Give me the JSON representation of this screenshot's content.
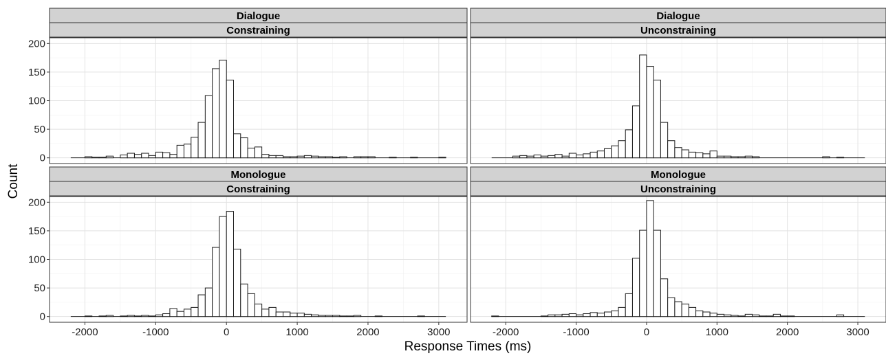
{
  "chart_data": {
    "type": "bar",
    "xlabel": "Response Times (ms)",
    "ylabel": "Count",
    "xlim": [
      -2500,
      3400
    ],
    "ylim": [
      -10,
      210
    ],
    "x_ticks": [
      -2000,
      -1000,
      0,
      1000,
      2000,
      3000
    ],
    "y_ticks": [
      0,
      50,
      100,
      150,
      200
    ],
    "grid": true,
    "legend": "none",
    "bin_width": 100,
    "bin_starts": [
      -2200,
      -2100,
      -2000,
      -1900,
      -1800,
      -1700,
      -1600,
      -1500,
      -1400,
      -1300,
      -1200,
      -1100,
      -1000,
      -900,
      -800,
      -700,
      -600,
      -500,
      -400,
      -300,
      -200,
      -100,
      0,
      100,
      200,
      300,
      400,
      500,
      600,
      700,
      800,
      900,
      1000,
      1100,
      1200,
      1300,
      1400,
      1500,
      1600,
      1700,
      1800,
      1900,
      2000,
      2100,
      2200,
      2300,
      2400,
      2500,
      2600,
      2700,
      2800,
      2900,
      3000
    ],
    "panels": [
      {
        "strip": [
          "Dialogue",
          "Constraining"
        ],
        "values": [
          0,
          0,
          2,
          1,
          1,
          3,
          0,
          5,
          8,
          6,
          8,
          4,
          10,
          9,
          6,
          22,
          24,
          36,
          62,
          109,
          156,
          171,
          136,
          42,
          35,
          17,
          19,
          6,
          4,
          4,
          2,
          2,
          3,
          4,
          3,
          2,
          2,
          1,
          2,
          0,
          2,
          2,
          2,
          0,
          0,
          1,
          0,
          0,
          1,
          0,
          0,
          0,
          1
        ]
      },
      {
        "strip": [
          "Dialogue",
          "Unconstraining"
        ],
        "values": [
          0,
          0,
          0,
          3,
          4,
          3,
          5,
          3,
          4,
          6,
          3,
          8,
          5,
          7,
          10,
          12,
          16,
          21,
          30,
          49,
          91,
          180,
          160,
          136,
          62,
          30,
          18,
          14,
          10,
          9,
          7,
          12,
          3,
          3,
          2,
          2,
          3,
          2,
          0,
          0,
          0,
          0,
          0,
          0,
          0,
          0,
          0,
          2,
          0,
          1,
          0,
          0,
          0
        ]
      },
      {
        "strip": [
          "Monologue",
          "Constraining"
        ],
        "values": [
          0,
          0,
          1,
          0,
          1,
          2,
          0,
          1,
          2,
          1,
          2,
          1,
          3,
          5,
          14,
          9,
          13,
          16,
          38,
          50,
          121,
          175,
          184,
          118,
          57,
          40,
          22,
          13,
          16,
          8,
          8,
          6,
          6,
          4,
          3,
          2,
          2,
          2,
          1,
          1,
          2,
          0,
          0,
          1,
          0,
          0,
          0,
          0,
          0,
          1,
          0,
          0,
          0
        ]
      },
      {
        "strip": [
          "Monologue",
          "Unconstraining"
        ],
        "values": [
          1,
          0,
          0,
          0,
          0,
          0,
          0,
          1,
          3,
          3,
          4,
          5,
          3,
          5,
          7,
          6,
          8,
          10,
          16,
          40,
          102,
          151,
          203,
          151,
          66,
          33,
          26,
          22,
          16,
          10,
          8,
          6,
          4,
          3,
          2,
          1,
          4,
          3,
          1,
          1,
          4,
          1,
          1,
          0,
          0,
          0,
          0,
          0,
          0,
          3,
          0,
          0,
          0
        ]
      }
    ]
  }
}
